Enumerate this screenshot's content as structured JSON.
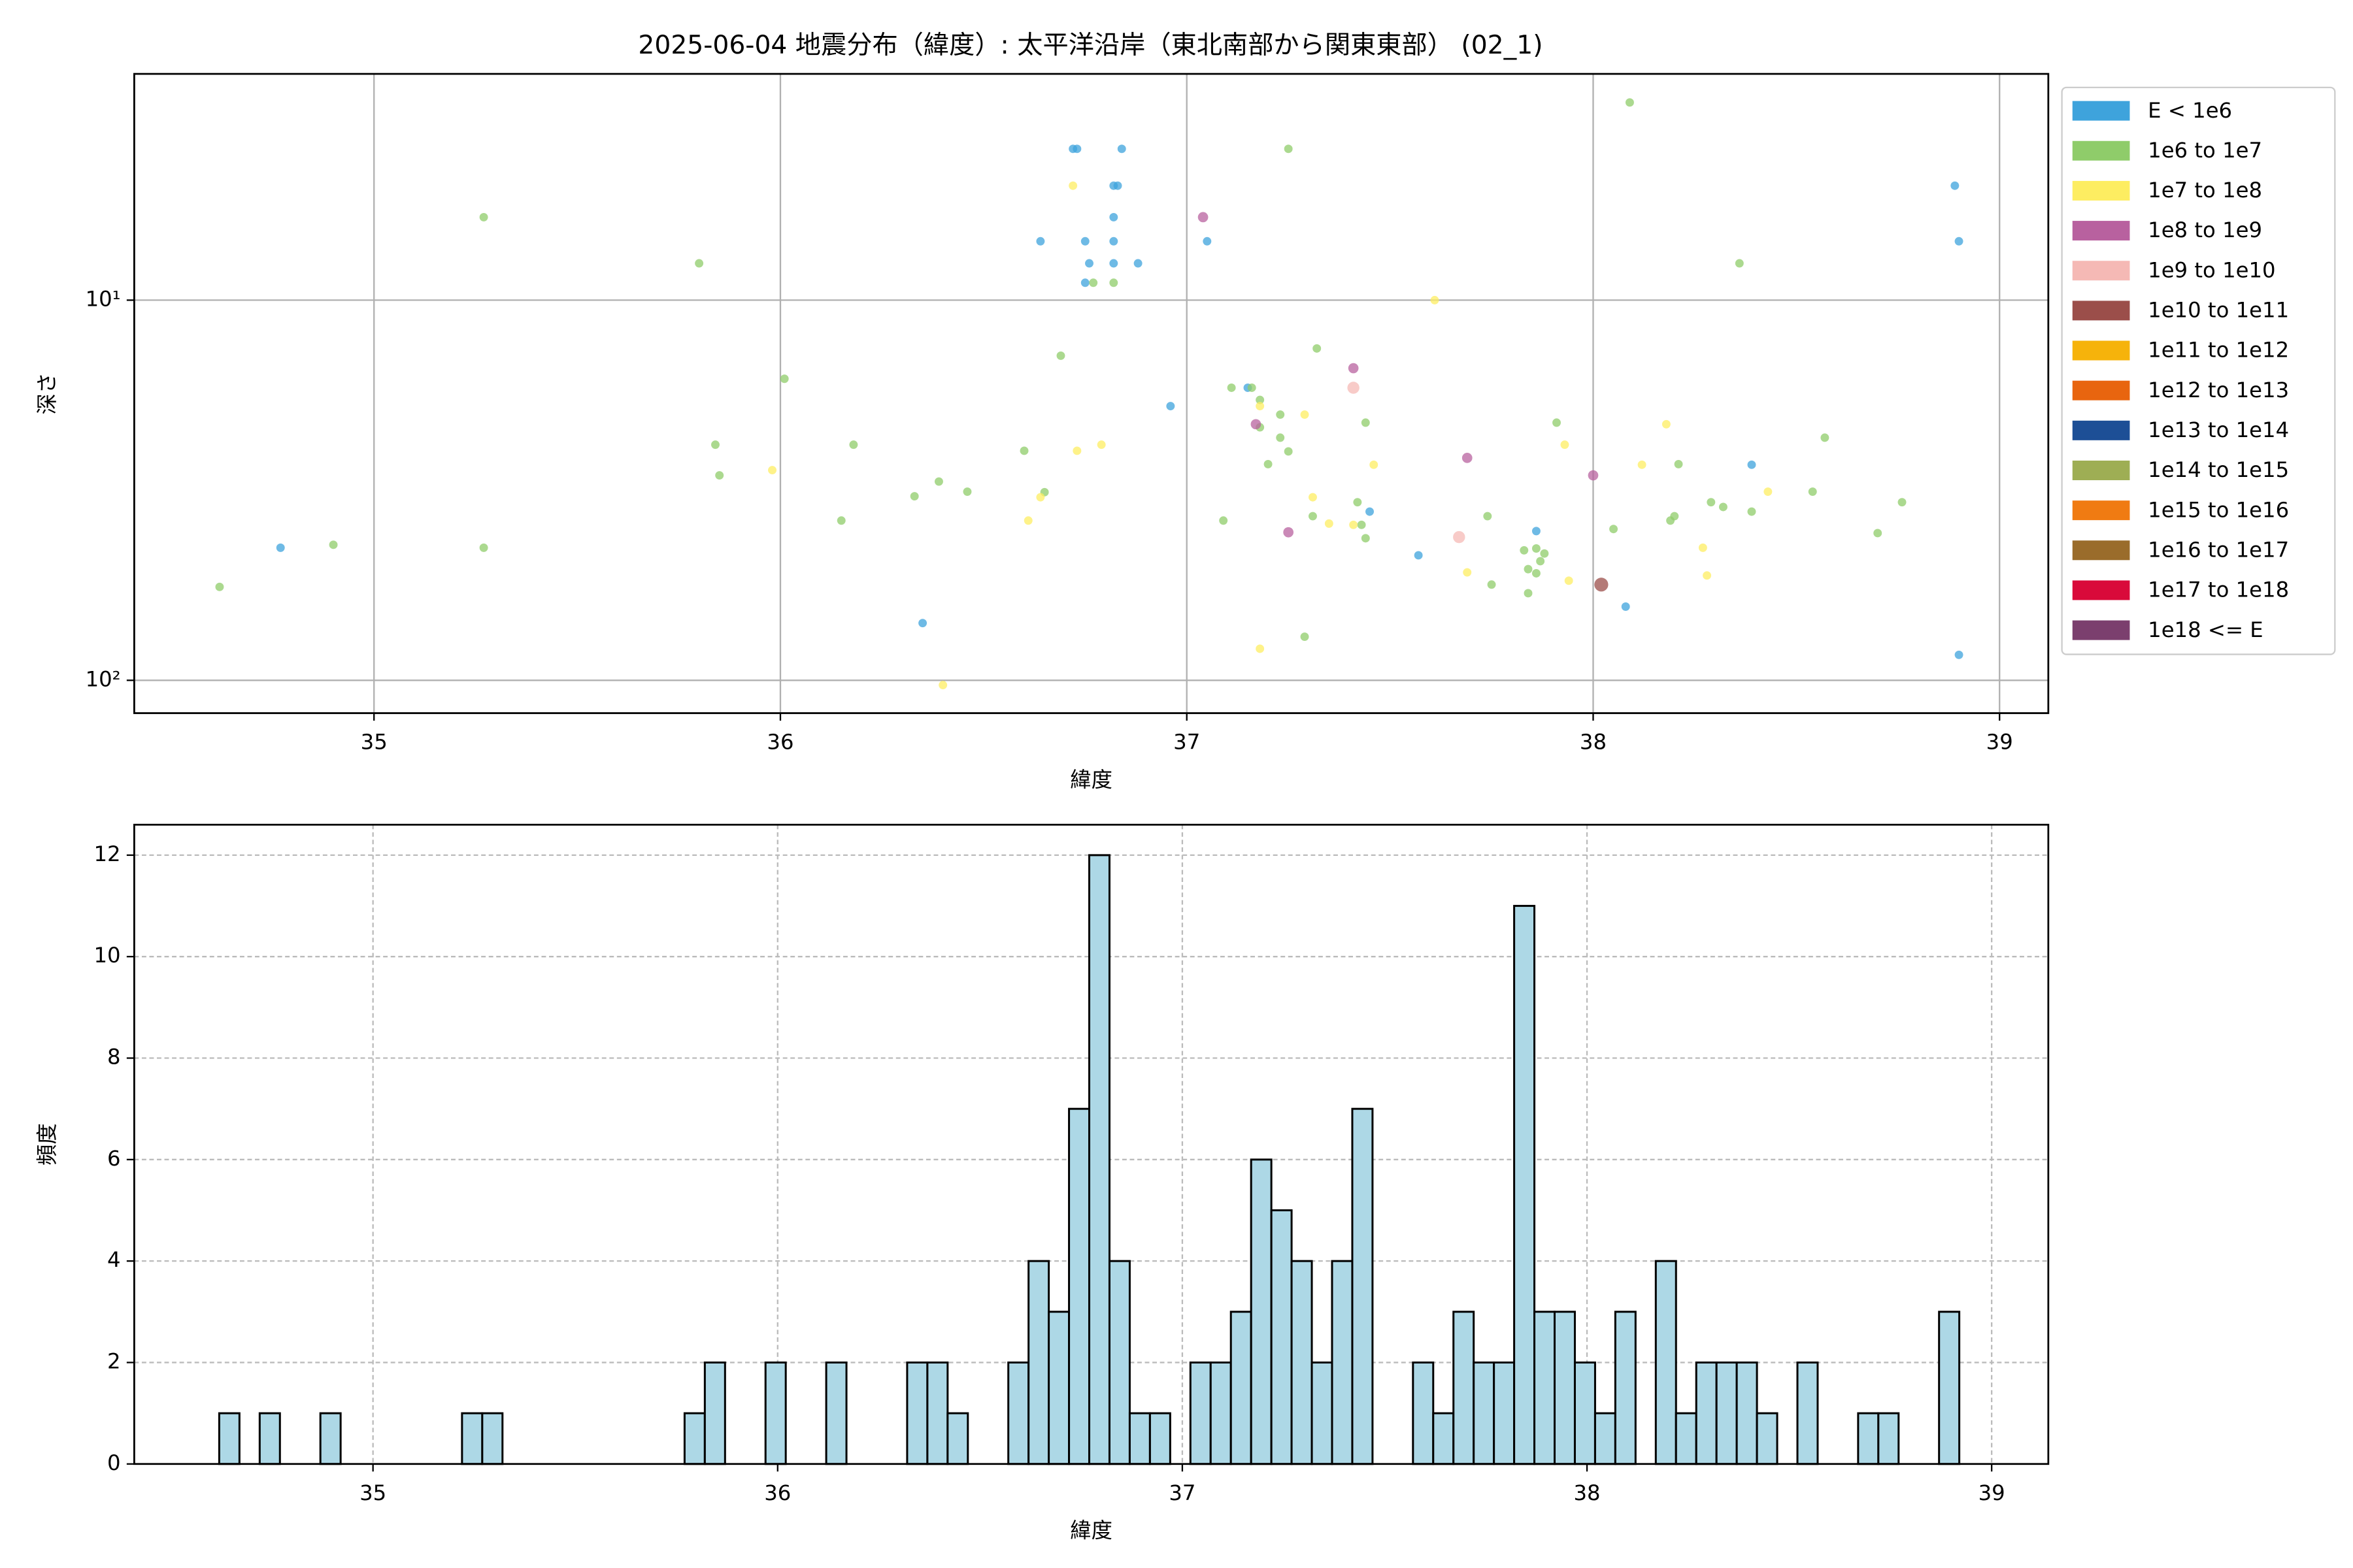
{
  "chart_data": [
    {
      "type": "scatter",
      "title": "2025-06-04 地震分布（緯度）: 太平洋沿岸（東北南部から関東東部） (02_1)",
      "x_label": "緯度",
      "y_label": "深さ",
      "xlim": [
        34.41,
        39.12
      ],
      "xticks": [
        35,
        36,
        37,
        38,
        39
      ],
      "ylim": [
        2.54,
        122
      ],
      "log_y": true,
      "invert_y": true,
      "yticks": [
        {
          "value": 10,
          "label": "10¹"
        },
        {
          "value": 100,
          "label": "10²"
        }
      ],
      "grid": true,
      "legend": "outside upper right",
      "series": [
        {
          "name": "E < 1e6",
          "color": "#3ea3dc",
          "x": [
            34.77,
            36.35,
            36.64,
            36.72,
            36.73,
            36.75,
            36.76,
            36.75,
            36.82,
            36.83,
            36.82,
            36.82,
            36.82,
            36.84,
            36.88,
            37.05,
            36.96,
            37.15,
            37.45,
            37.57,
            37.86,
            38.39,
            38.08,
            38.89,
            38.9,
            38.9
          ],
          "values": [
            44.8,
            70.7,
            7.0,
            4.0,
            4.0,
            7.0,
            8.0,
            9.0,
            5.0,
            5.0,
            6.05,
            7.0,
            8.0,
            4.0,
            8.0,
            7.0,
            19.0,
            17.0,
            36,
            46.9,
            40.5,
            27.1,
            64,
            5.0,
            7.0,
            85.7
          ]
        },
        {
          "name": "1e6 to 1e7",
          "color": "#8fcc6a",
          "x": [
            34.62,
            34.9,
            35.27,
            35.27,
            35.8,
            35.84,
            35.85,
            36.01,
            36.15,
            36.18,
            36.33,
            36.39,
            36.46,
            36.6,
            36.65,
            36.69,
            36.77,
            36.82,
            37.09,
            37.11,
            37.16,
            37.18,
            37.18,
            37.23,
            37.23,
            37.25,
            37.25,
            37.2,
            37.32,
            37.29,
            37.31,
            37.42,
            37.43,
            37.44,
            37.44,
            37.74,
            37.75,
            37.84,
            37.83,
            37.84,
            37.86,
            37.86,
            37.87,
            37.88,
            37.91,
            38.05,
            38.09,
            38.19,
            38.2,
            38.21,
            38.29,
            38.32,
            38.36,
            38.39,
            38.54,
            38.57,
            38.7,
            38.76
          ],
          "values": [
            56.8,
            44,
            44.8,
            6.05,
            8.0,
            24,
            28.9,
            16.1,
            38,
            24,
            32.8,
            30,
            31.9,
            24.9,
            32,
            14,
            9.0,
            9.0,
            38,
            17,
            17,
            18.3,
            21.6,
            20,
            23,
            25,
            4.0,
            27,
            13.4,
            76.8,
            37,
            34,
            39,
            42.3,
            21,
            37,
            56,
            59,
            45.5,
            51,
            52.3,
            45,
            48.6,
            46.4,
            21,
            40,
            3.02,
            38,
            37,
            27,
            34,
            35,
            8.0,
            36,
            31.9,
            23,
            41,
            34
          ]
        },
        {
          "name": "1e7 to 1e8",
          "color": "#fded61",
          "x": [
            36.72,
            36.73,
            36.79,
            36.61,
            36.64,
            35.98,
            36.4,
            37.18,
            37.29,
            37.31,
            37.35,
            37.41,
            37.46,
            37.61,
            37.69,
            37.93,
            37.94,
            38.12,
            38.18,
            38.27,
            38.28,
            38.43,
            37.18
          ],
          "values": [
            5.0,
            24.9,
            24,
            38,
            33,
            28,
            102.9,
            19,
            20,
            33,
            38.7,
            39,
            27.1,
            10,
            52,
            24,
            54.7,
            27.1,
            21.2,
            44.8,
            53,
            31.9,
            82.6
          ]
        },
        {
          "name": "1e8 to 1e9",
          "color": "#b8619f",
          "x": [
            37.04,
            37.41,
            37.17,
            37.69,
            38.0,
            37.25
          ],
          "values": [
            6.05,
            15.1,
            21.2,
            26,
            28.9,
            40.8
          ]
        },
        {
          "name": "1e9 to 1e10",
          "color": "#f5b9b5",
          "x": [
            37.41,
            37.67
          ],
          "values": [
            17,
            42
          ]
        },
        {
          "name": "1e10 to 1e11",
          "color": "#9b4e4a",
          "x": [
            38.02
          ],
          "values": [
            56
          ]
        },
        {
          "name": "1e11 to 1e12",
          "color": "#f6b30b",
          "x": [],
          "values": []
        },
        {
          "name": "1e12 to 1e13",
          "color": "#e8650f",
          "x": [],
          "values": []
        },
        {
          "name": "1e13 to 1e14",
          "color": "#1d4f96",
          "x": [],
          "values": []
        },
        {
          "name": "1e14 to 1e15",
          "color": "#9eae54",
          "x": [],
          "values": []
        },
        {
          "name": "1e15 to 1e16",
          "color": "#f07b12",
          "x": [],
          "values": []
        },
        {
          "name": "1e16 to 1e17",
          "color": "#9a6c2b",
          "x": [],
          "values": []
        },
        {
          "name": "1e17 to 1e18",
          "color": "#d90a3a",
          "x": [],
          "values": []
        },
        {
          "name": "1e18 <= E",
          "color": "#7b3f6e",
          "x": [],
          "values": []
        }
      ]
    },
    {
      "type": "histogram",
      "x_label": "緯度",
      "y_label": "頻度",
      "xlim": [
        34.41,
        39.14
      ],
      "xticks": [
        35,
        36,
        37,
        38,
        39
      ],
      "ylim": [
        0,
        12.6
      ],
      "yticks": [
        0,
        2,
        4,
        6,
        8,
        10,
        12
      ],
      "grid": true,
      "grid_linestyle": "dashed",
      "color": "#add8e6",
      "bins": [
        34.62,
        34.67,
        34.72,
        34.77,
        34.82,
        34.87,
        34.92,
        34.97,
        35.02,
        35.07,
        35.12,
        35.17,
        35.22,
        35.27,
        35.32,
        35.37,
        35.42,
        35.47,
        35.52,
        35.57,
        35.62,
        35.67,
        35.72,
        35.77,
        35.82,
        35.87,
        35.92,
        35.97,
        36.02,
        36.07,
        36.12,
        36.17,
        36.22,
        36.27,
        36.32,
        36.37,
        36.42,
        36.47,
        36.52,
        36.57,
        36.62,
        36.67,
        36.72,
        36.77,
        36.82,
        36.87,
        36.92,
        36.97,
        37.02,
        37.07,
        37.12,
        37.17,
        37.22,
        37.27,
        37.32,
        37.37,
        37.42,
        37.47,
        37.52,
        37.57,
        37.62,
        37.67,
        37.72,
        37.77,
        37.82,
        37.87,
        37.92,
        37.97,
        38.02,
        38.07,
        38.12,
        38.17,
        38.22,
        38.27,
        38.32,
        38.37,
        38.42,
        38.47,
        38.52,
        38.57,
        38.62,
        38.67,
        38.72,
        38.77,
        38.82,
        38.87,
        38.92
      ],
      "values": [
        1,
        0,
        1,
        0,
        0,
        1,
        0,
        0,
        0,
        0,
        0,
        0,
        1,
        1,
        0,
        0,
        0,
        0,
        0,
        0,
        0,
        0,
        0,
        1,
        2,
        0,
        0,
        2,
        0,
        0,
        2,
        0,
        0,
        0,
        2,
        2,
        1,
        0,
        0,
        2,
        4,
        3,
        7,
        12,
        4,
        1,
        1,
        0,
        2,
        2,
        3,
        6,
        5,
        4,
        2,
        4,
        7,
        0,
        0,
        2,
        1,
        3,
        2,
        2,
        11,
        3,
        3,
        2,
        1,
        3,
        0,
        4,
        1,
        2,
        2,
        2,
        1,
        0,
        2,
        0,
        0,
        1,
        1,
        0,
        0,
        3
      ]
    }
  ]
}
